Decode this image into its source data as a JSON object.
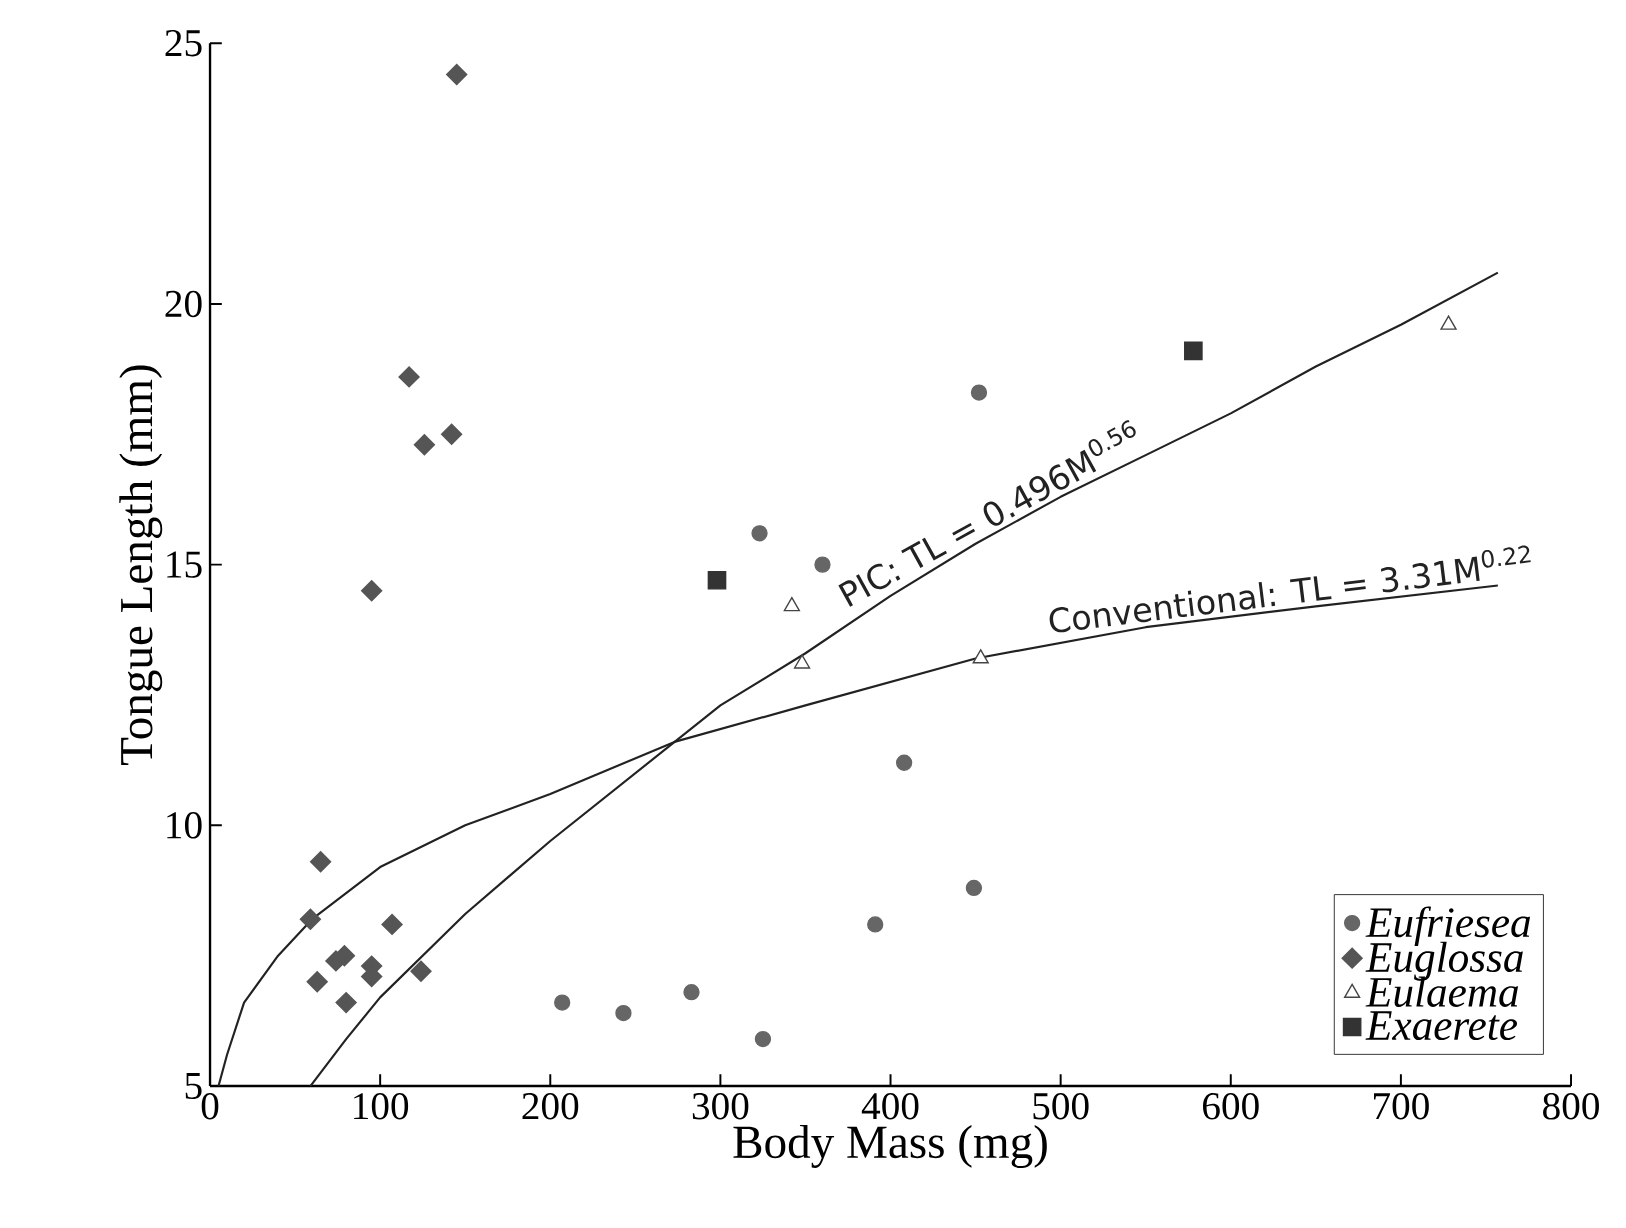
{
  "chart_data": {
    "type": "scatter",
    "xlabel": "Body Mass (mg)",
    "ylabel": "Tongue Length (mm)",
    "xlim": [
      0,
      800
    ],
    "ylim": [
      5,
      25
    ],
    "xticks": [
      0,
      100,
      200,
      300,
      400,
      500,
      600,
      700,
      800
    ],
    "yticks": [
      5,
      10,
      15,
      20,
      25
    ],
    "grid": false,
    "legend": "bottom right",
    "series": [
      {
        "name": "Eufriesea",
        "marker": "circle",
        "color": "#666666",
        "x": [
          207,
          243,
          283,
          325,
          391,
          408,
          449,
          452,
          323,
          360
        ],
        "values": [
          6.6,
          6.4,
          6.8,
          5.9,
          8.1,
          11.2,
          8.8,
          18.3,
          15.6,
          15.0
        ]
      },
      {
        "name": "Euglossa",
        "marker": "diamond",
        "color": "#555555",
        "x": [
          145,
          117,
          126,
          142,
          95,
          65,
          59,
          107,
          79,
          74,
          95,
          95,
          63,
          124,
          80
        ],
        "values": [
          24.4,
          18.6,
          17.3,
          17.5,
          14.5,
          9.3,
          8.2,
          8.1,
          7.5,
          7.4,
          7.3,
          7.1,
          7.0,
          7.2,
          6.6
        ]
      },
      {
        "name": "Eulaema",
        "marker": "triangle",
        "color": "#444444",
        "x": [
          342,
          348,
          453,
          728
        ],
        "values": [
          14.2,
          13.1,
          13.2,
          19.6
        ]
      },
      {
        "name": "Exaerete",
        "marker": "square",
        "color": "#333333",
        "x": [
          298,
          578
        ],
        "values": [
          14.7,
          19.1
        ]
      },
      {
        "name": "PIC: TL = 0.496M$^{0.56}$",
        "type": "line",
        "marker": "none",
        "color": "#222222",
        "x": [
          59,
          80,
          100,
          150,
          200,
          250,
          300,
          350,
          400,
          450,
          500,
          550,
          600,
          650,
          700,
          757
        ],
        "values": [
          5.0,
          5.9,
          6.7,
          8.3,
          9.7,
          11.0,
          12.3,
          13.3,
          14.4,
          15.4,
          16.3,
          17.1,
          17.9,
          18.8,
          19.6,
          20.6
        ]
      },
      {
        "name": "Conventional: TL = 3.31M$^{0.22}$",
        "type": "line",
        "marker": "none",
        "color": "#222222",
        "x": [
          5,
          10,
          20,
          40,
          60,
          100,
          150,
          200,
          273,
          350,
          450,
          550,
          650,
          757
        ],
        "values": [
          5.0,
          5.6,
          6.6,
          7.5,
          8.2,
          9.2,
          10.0,
          10.6,
          11.6,
          12.3,
          13.2,
          13.8,
          14.2,
          14.6
        ]
      }
    ]
  }
}
